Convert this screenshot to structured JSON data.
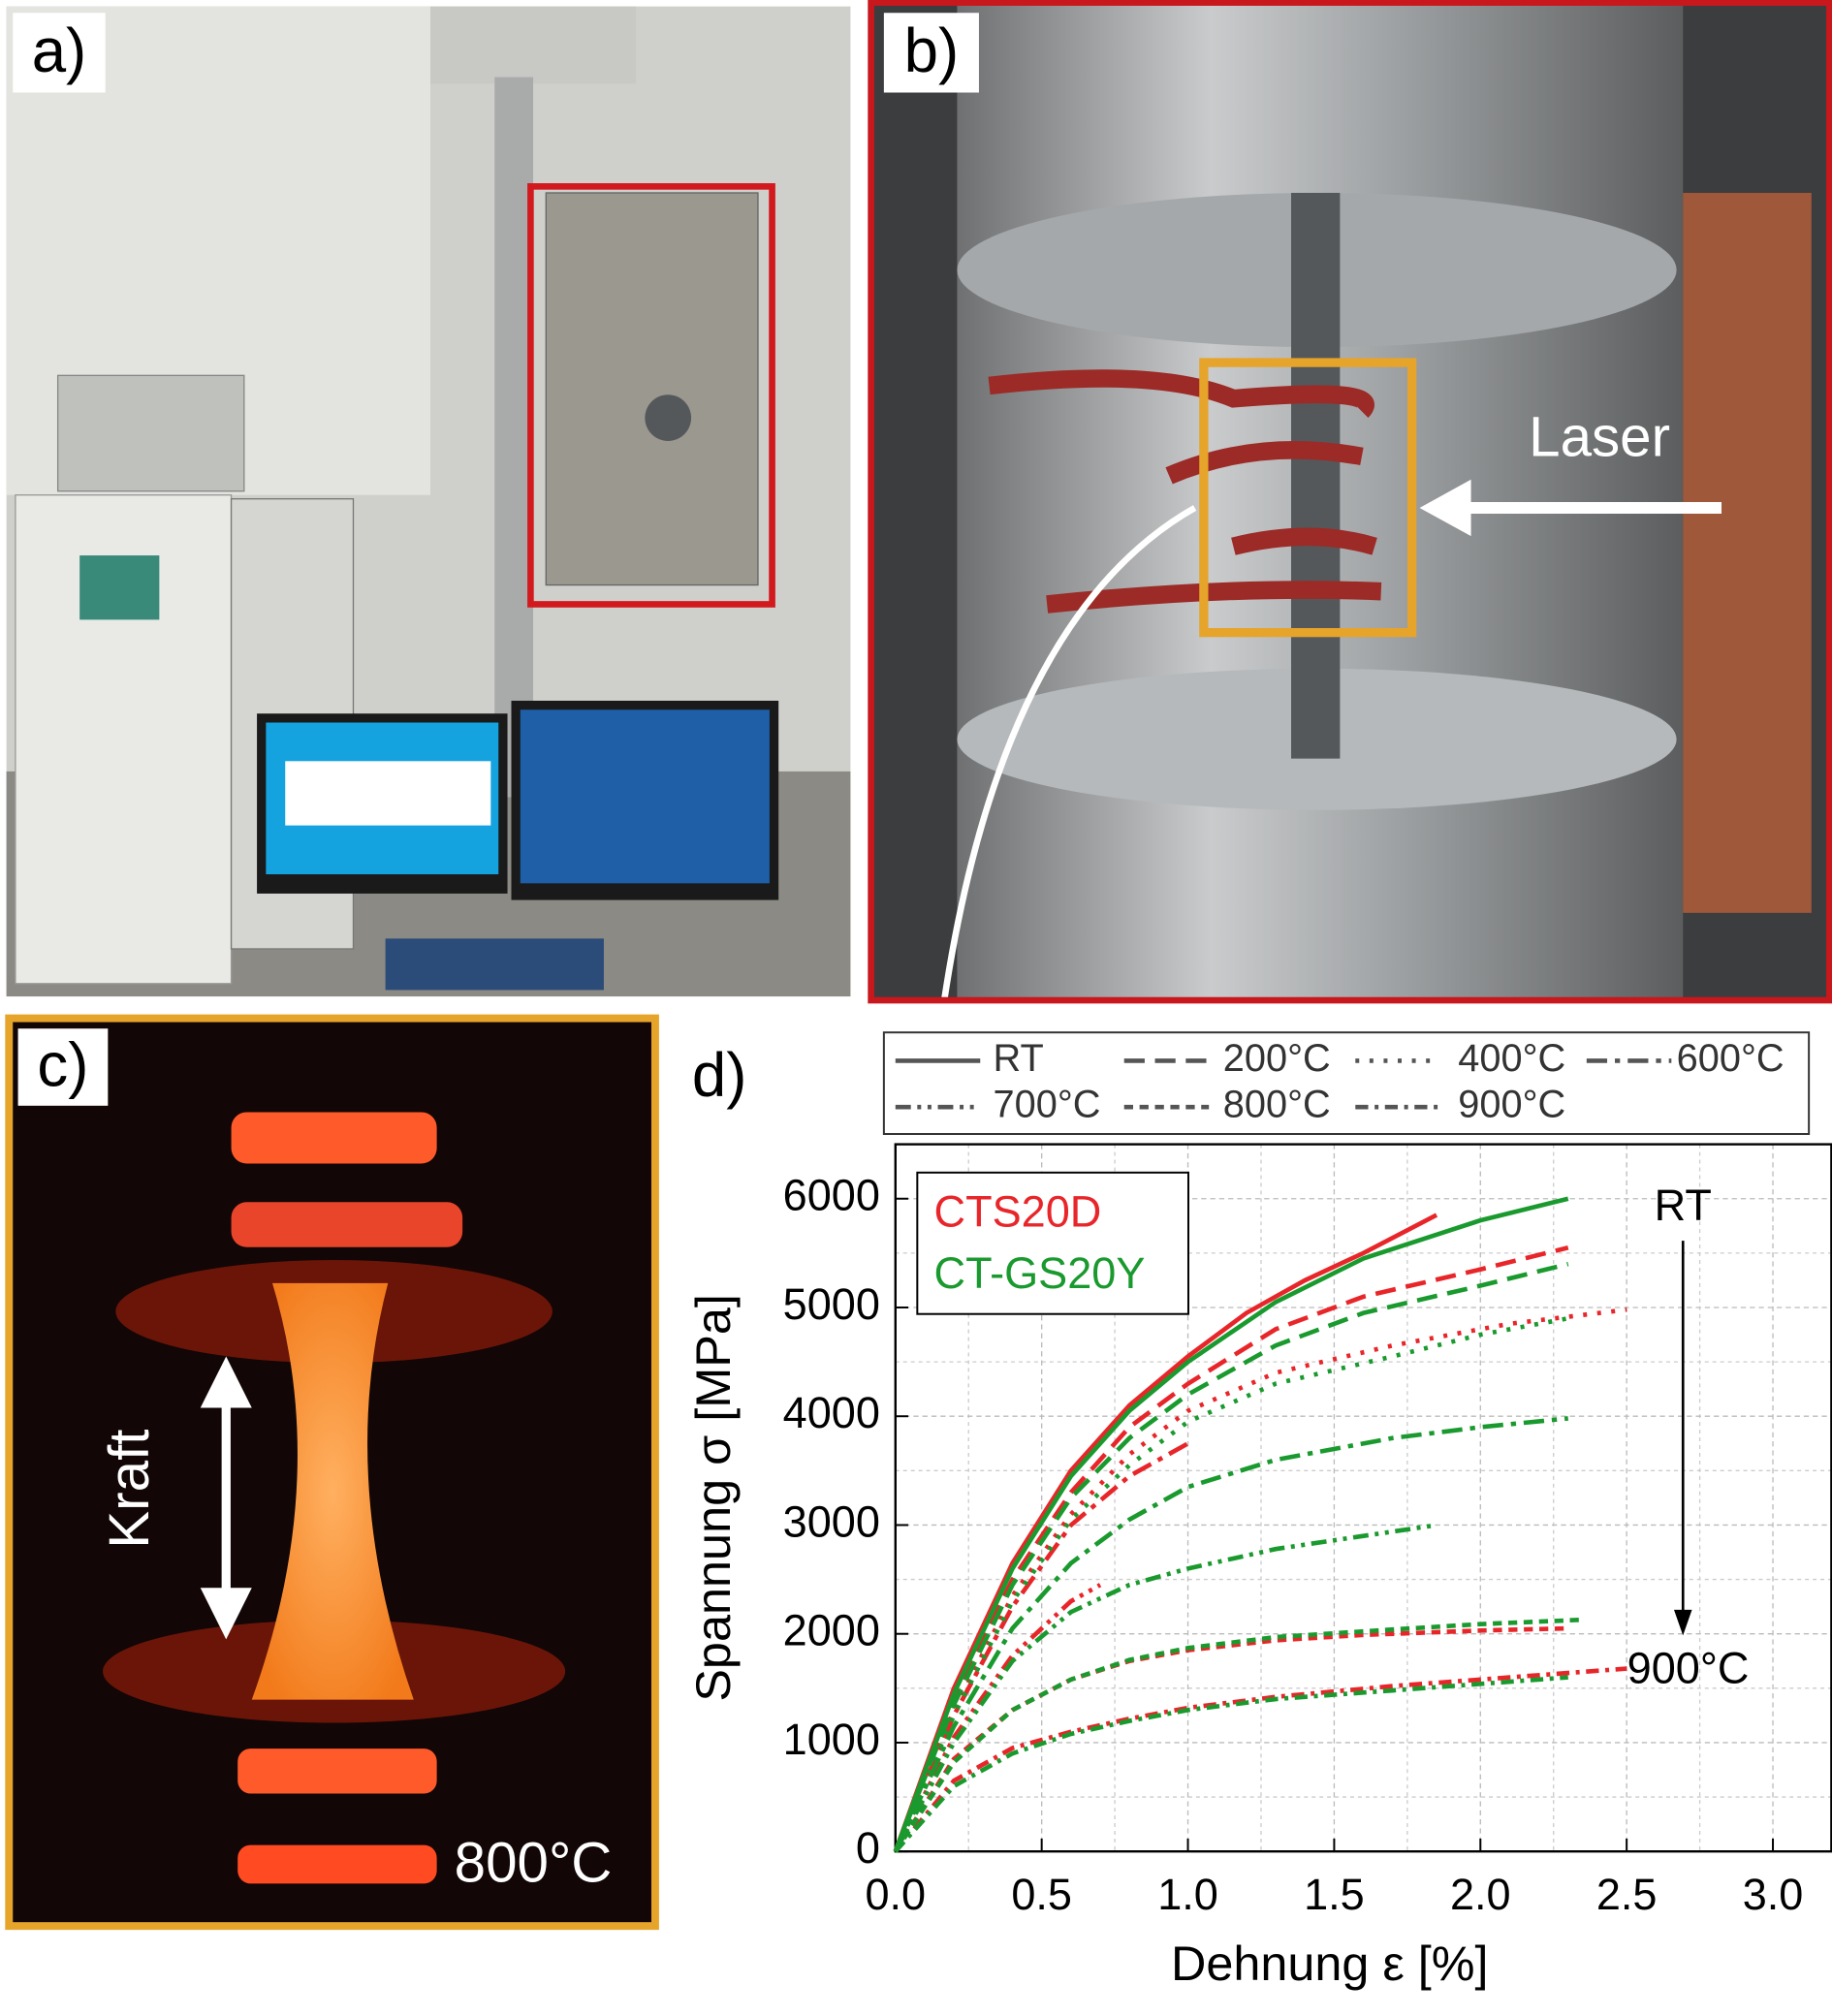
{
  "panels": {
    "a": {
      "label": "a)"
    },
    "b": {
      "label": "b)",
      "annotation": "Laser"
    },
    "c": {
      "label": "c)",
      "annotation": "Kraft",
      "temperature": "800°C"
    }
  },
  "chart_data": {
    "type": "line",
    "panel_label": "d)",
    "x_label": "Dehnung ε [%]",
    "y_label": "Spannung σ [MPa]",
    "xlim": [
      0,
      3.2
    ],
    "ylim": [
      0,
      6500
    ],
    "xticks": [
      {
        "value": 0,
        "label": "0.0"
      },
      0.5,
      {
        "value": 1,
        "label": "1.0"
      },
      1.5,
      {
        "value": 2,
        "label": "2.0"
      },
      2.5,
      {
        "value": 3,
        "label": "3.0"
      }
    ],
    "yticks": [
      0,
      1000,
      2000,
      3000,
      4000,
      5000,
      6000
    ],
    "xminor": [
      0.25,
      0.75,
      1.25,
      1.75,
      2.25,
      2.75
    ],
    "yminor": [
      500,
      1500,
      2500,
      3500,
      4500,
      5500,
      6500
    ],
    "grid": true,
    "annotations": {
      "top": "RT",
      "bottom": "900°C"
    },
    "series": [
      {
        "material": "CTS20D",
        "temperature": "RT",
        "color": "#e8262a",
        "dash": "solid",
        "x": [
          0,
          0.2,
          0.4,
          0.6,
          0.8,
          1.0,
          1.2,
          1.4,
          1.6,
          1.85
        ],
        "values": [
          0,
          1500,
          2650,
          3500,
          4100,
          4550,
          4950,
          5250,
          5500,
          5850
        ]
      },
      {
        "material": "CTS20D",
        "temperature": "200°C",
        "color": "#e8262a",
        "dash": "dash",
        "x": [
          0,
          0.2,
          0.4,
          0.6,
          0.8,
          1.0,
          1.3,
          1.6,
          2.0,
          2.3
        ],
        "values": [
          0,
          1400,
          2500,
          3300,
          3900,
          4300,
          4800,
          5100,
          5350,
          5550
        ]
      },
      {
        "material": "CTS20D",
        "temperature": "400°C",
        "color": "#e8262a",
        "dash": "dot",
        "x": [
          0,
          0.2,
          0.4,
          0.6,
          0.8,
          1.0,
          1.3,
          1.7,
          2.1,
          2.5
        ],
        "values": [
          0,
          1300,
          2350,
          3100,
          3650,
          4050,
          4400,
          4650,
          4850,
          4980
        ]
      },
      {
        "material": "CTS20D",
        "temperature": "600°C",
        "color": "#e8262a",
        "dash": "dashdot",
        "x": [
          0,
          0.2,
          0.4,
          0.6,
          0.8,
          1.0
        ],
        "values": [
          0,
          1250,
          2250,
          3000,
          3450,
          3750
        ]
      },
      {
        "material": "CTS20D",
        "temperature": "700°C",
        "color": "#e8262a",
        "dash": "dashdotdot",
        "x": [
          0,
          0.2,
          0.4,
          0.6,
          0.7
        ],
        "values": [
          0,
          1050,
          1800,
          2300,
          2450
        ]
      },
      {
        "material": "CTS20D",
        "temperature": "800°C",
        "color": "#e8262a",
        "dash": "shortdash",
        "x": [
          0,
          0.2,
          0.4,
          0.6,
          0.8,
          1.0,
          1.3,
          1.6,
          2.0,
          2.3
        ],
        "values": [
          0,
          850,
          1300,
          1580,
          1750,
          1850,
          1940,
          1990,
          2030,
          2050
        ]
      },
      {
        "material": "CTS20D",
        "temperature": "900°C",
        "color": "#e8262a",
        "dash": "longdashdot",
        "x": [
          0,
          0.2,
          0.4,
          0.6,
          0.8,
          1.0,
          1.3,
          1.7,
          2.1,
          2.5
        ],
        "values": [
          0,
          650,
          950,
          1100,
          1220,
          1320,
          1420,
          1520,
          1600,
          1680
        ]
      },
      {
        "material": "CT-GS20Y",
        "temperature": "RT",
        "color": "#1a9a2e",
        "dash": "solid",
        "x": [
          0,
          0.2,
          0.4,
          0.6,
          0.8,
          1.0,
          1.3,
          1.6,
          2.0,
          2.3
        ],
        "values": [
          0,
          1450,
          2600,
          3450,
          4050,
          4500,
          5050,
          5450,
          5800,
          6000
        ]
      },
      {
        "material": "CT-GS20Y",
        "temperature": "200°C",
        "color": "#1a9a2e",
        "dash": "dash",
        "x": [
          0,
          0.2,
          0.4,
          0.6,
          0.8,
          1.0,
          1.3,
          1.6,
          2.0,
          2.3
        ],
        "values": [
          0,
          1350,
          2450,
          3250,
          3800,
          4200,
          4650,
          4950,
          5200,
          5400
        ]
      },
      {
        "material": "CT-GS20Y",
        "temperature": "400°C",
        "color": "#1a9a2e",
        "dash": "dot",
        "x": [
          0,
          0.2,
          0.4,
          0.6,
          0.8,
          1.0,
          1.3,
          1.7,
          2.0,
          2.3
        ],
        "values": [
          0,
          1250,
          2300,
          3050,
          3550,
          3950,
          4300,
          4550,
          4750,
          4900
        ]
      },
      {
        "material": "CT-GS20Y",
        "temperature": "600°C",
        "color": "#1a9a2e",
        "dash": "dashdot",
        "x": [
          0,
          0.2,
          0.4,
          0.6,
          0.8,
          1.0,
          1.3,
          1.7,
          2.0,
          2.3
        ],
        "values": [
          0,
          1150,
          2050,
          2650,
          3050,
          3350,
          3600,
          3800,
          3900,
          3980
        ]
      },
      {
        "material": "CT-GS20Y",
        "temperature": "700°C",
        "color": "#1a9a2e",
        "dash": "dashdotdot",
        "x": [
          0,
          0.2,
          0.4,
          0.6,
          0.8,
          1.0,
          1.3,
          1.6,
          1.85
        ],
        "values": [
          0,
          1000,
          1750,
          2200,
          2450,
          2600,
          2780,
          2900,
          3000
        ]
      },
      {
        "material": "CT-GS20Y",
        "temperature": "800°C",
        "color": "#1a9a2e",
        "dash": "shortdash",
        "x": [
          0,
          0.2,
          0.4,
          0.6,
          0.8,
          1.0,
          1.3,
          1.7,
          2.0,
          2.35
        ],
        "values": [
          0,
          820,
          1300,
          1580,
          1760,
          1870,
          1970,
          2040,
          2090,
          2130
        ]
      },
      {
        "material": "CT-GS20Y",
        "temperature": "900°C",
        "color": "#1a9a2e",
        "dash": "longdashdot",
        "x": [
          0,
          0.2,
          0.4,
          0.6,
          0.8,
          1.0,
          1.3,
          1.7,
          2.0,
          2.3
        ],
        "values": [
          0,
          600,
          900,
          1080,
          1200,
          1300,
          1400,
          1480,
          1540,
          1600
        ]
      }
    ]
  }
}
